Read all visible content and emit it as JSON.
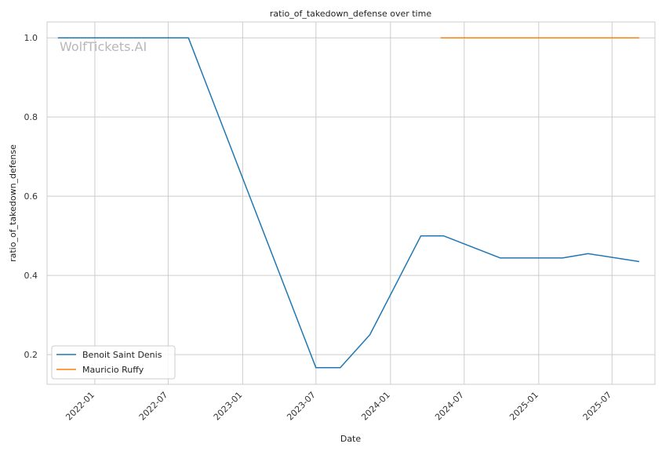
{
  "chart_data": {
    "type": "line",
    "title": "ratio_of_takedown_defense over time",
    "xlabel": "Date",
    "ylabel": "ratio_of_takedown_defense",
    "watermark": "WolfTickets.AI",
    "x_ticks": [
      "2022-01",
      "2022-07",
      "2023-01",
      "2023-07",
      "2024-01",
      "2024-07",
      "2025-01",
      "2025-07"
    ],
    "y_ticks": [
      "0.2",
      "0.4",
      "0.6",
      "0.8",
      "1.0"
    ],
    "xlim": [
      "2021-09-05",
      "2025-10-15"
    ],
    "ylim": [
      0.125,
      1.04
    ],
    "grid": true,
    "legend_position": "lower-left",
    "series": [
      {
        "name": "Benoit Saint Denis",
        "color": "#1f77b4",
        "points": [
          {
            "x": "2021-10-02",
            "y": 1.0
          },
          {
            "x": "2022-08-20",
            "y": 1.0
          },
          {
            "x": "2023-07-01",
            "y": 0.167
          },
          {
            "x": "2023-08-30",
            "y": 0.167
          },
          {
            "x": "2023-11-11",
            "y": 0.25
          },
          {
            "x": "2024-03-16",
            "y": 0.5
          },
          {
            "x": "2024-05-11",
            "y": 0.5
          },
          {
            "x": "2024-09-28",
            "y": 0.444
          },
          {
            "x": "2025-03-01",
            "y": 0.444
          },
          {
            "x": "2025-05-03",
            "y": 0.455
          },
          {
            "x": "2025-09-06",
            "y": 0.435
          }
        ]
      },
      {
        "name": "Mauricio Ruffy",
        "color": "#ff7f0e",
        "points": [
          {
            "x": "2024-05-04",
            "y": 1.0
          },
          {
            "x": "2025-09-06",
            "y": 1.0
          }
        ]
      }
    ]
  }
}
